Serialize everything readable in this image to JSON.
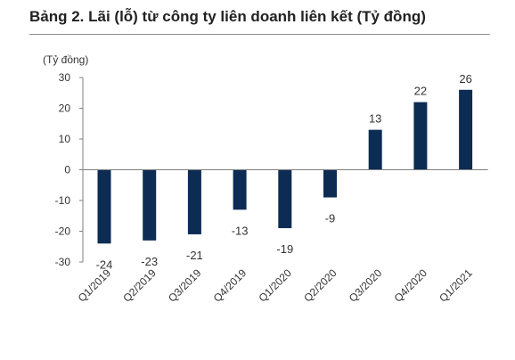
{
  "figure": {
    "title": "Bảng 2. Lãi (lỗ) từ công ty liên doanh liên kết (Tỷ đồng)"
  },
  "chart_data": {
    "type": "bar",
    "title": "",
    "ylabel": "(Tỷ đồng)",
    "xlabel": "",
    "categories": [
      "Q1/2019",
      "Q2/2019",
      "Q3/2019",
      "Q4/2019",
      "Q1/2020",
      "Q2/2020",
      "Q3/2020",
      "Q4/2020",
      "Q1/2021"
    ],
    "values": [
      -24,
      -23,
      -21,
      -13,
      -19,
      -9,
      13,
      22,
      26
    ],
    "data_labels": [
      "-24",
      "-23",
      "-21",
      "-13",
      "-19",
      "-9",
      "13",
      "22",
      "26"
    ],
    "yticks": [
      30,
      20,
      10,
      0,
      -10,
      -20,
      -30
    ],
    "ylim": [
      -30,
      30
    ],
    "bar_color": "#0d2c54",
    "grid": false,
    "legend": "none"
  }
}
